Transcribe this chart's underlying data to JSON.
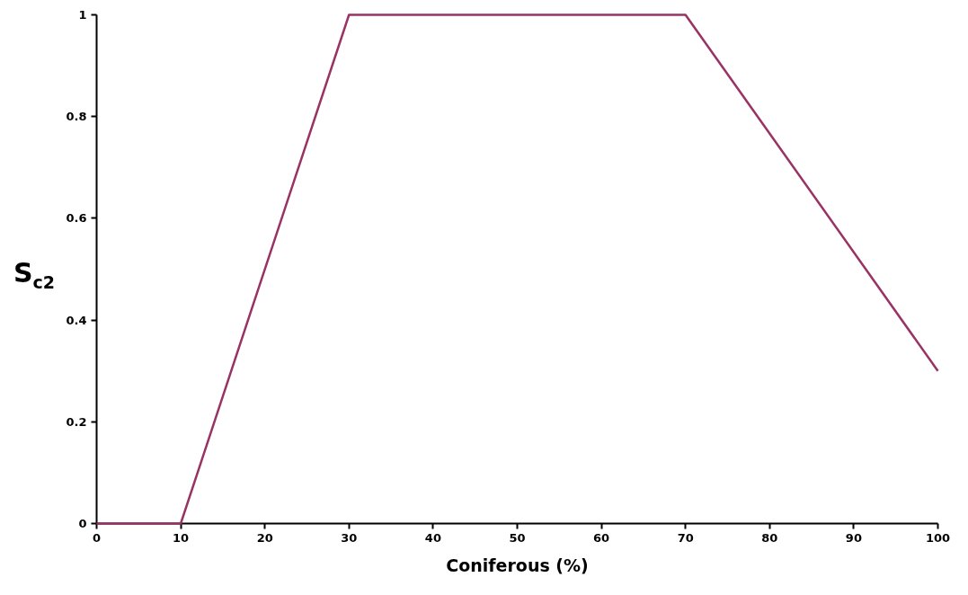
{
  "chart_data": {
    "type": "line",
    "xlabel": "Coniferous (%)",
    "ylabel": "S$_{c2}$",
    "x": [
      0,
      10,
      30,
      70,
      100
    ],
    "series": [
      {
        "color": "#993366",
        "values": [
          0,
          0,
          1,
          1,
          0.3
        ]
      }
    ],
    "xlim": [
      0,
      100
    ],
    "xticks": [
      0,
      10,
      20,
      30,
      40,
      50,
      60,
      70,
      80,
      90,
      100
    ],
    "ylim": [
      0,
      1
    ],
    "yticks": [
      0,
      0.2,
      0.4,
      0.6,
      0.8,
      1
    ],
    "grid": false,
    "marker": "none",
    "line_style": "solid"
  }
}
